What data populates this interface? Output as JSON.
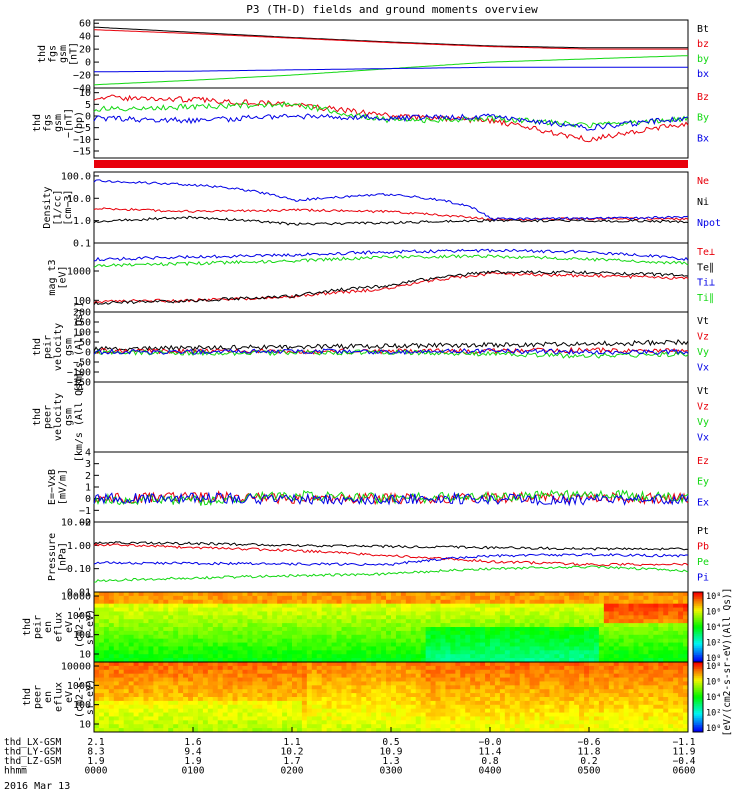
{
  "title": "P3 (TH-D) fields and ground moments overview",
  "date_label": "2016 Mar 13",
  "colors": {
    "black": "#000000",
    "red": "#e8000b",
    "green": "#12d812",
    "blue": "#0000e6"
  },
  "chart_data": [
    {
      "type": "line",
      "id": "fgs_gsm",
      "ylabel": [
        "thd",
        "fgs",
        "gsm",
        "[nT]"
      ],
      "yticks": [
        "60",
        "40",
        "20",
        "0",
        "−20",
        "−40"
      ],
      "ylim": [
        -40,
        65
      ],
      "yscale": "linear",
      "series": [
        {
          "name": "Bt",
          "color": "black",
          "x": [
            0,
            1,
            2,
            3,
            4,
            5,
            6
          ],
          "y": [
            54,
            46,
            38,
            31,
            25,
            22,
            22
          ]
        },
        {
          "name": "bz",
          "color": "red",
          "x": [
            0,
            1,
            2,
            3,
            4,
            5,
            6
          ],
          "y": [
            50,
            44,
            37,
            30,
            24,
            20,
            20
          ]
        },
        {
          "name": "by",
          "color": "green",
          "x": [
            0,
            1,
            2,
            3,
            4,
            5,
            6
          ],
          "y": [
            -35,
            -28,
            -20,
            -10,
            0,
            5,
            10
          ]
        },
        {
          "name": "bx",
          "color": "blue",
          "x": [
            0,
            1,
            2,
            3,
            4,
            5,
            6
          ],
          "y": [
            -15,
            -14,
            -12,
            -10,
            -8,
            -8,
            -8
          ]
        }
      ]
    },
    {
      "type": "line",
      "id": "fgs_gsm_hp",
      "ylabel": [
        "thd",
        "fgs",
        "gsm",
        "−[nT]",
        "(bp)"
      ],
      "yticks": [
        "10",
        "5",
        "0",
        "−5",
        "−10",
        "−15"
      ],
      "ylim": [
        -18,
        12
      ],
      "yscale": "linear",
      "series": [
        {
          "name": "Bz",
          "color": "red",
          "x": [
            0,
            1,
            2,
            3,
            4,
            5,
            6
          ],
          "y": [
            8,
            7,
            5,
            0,
            -2,
            -10,
            -3
          ]
        },
        {
          "name": "By",
          "color": "green",
          "x": [
            0,
            1,
            2,
            3,
            4,
            5,
            6
          ],
          "y": [
            3,
            4,
            5,
            -2,
            -1,
            -4,
            -1
          ]
        },
        {
          "name": "Bx",
          "color": "blue",
          "x": [
            0,
            1,
            2,
            3,
            4,
            5,
            6
          ],
          "y": [
            -1,
            -2,
            0,
            -1,
            0,
            -5,
            -1
          ]
        }
      ]
    },
    {
      "type": "line",
      "id": "density",
      "ylabel": [
        "Density",
        "[1/cc]",
        "[cm−3]"
      ],
      "yticks": [
        "100.0",
        "10.0",
        "1.0",
        "0.1"
      ],
      "ylim": [
        0.1,
        150
      ],
      "yscale": "log",
      "series": [
        {
          "name": "Ne",
          "color": "red",
          "x": [
            0,
            1,
            2,
            3,
            4,
            5,
            6
          ],
          "y": [
            3.5,
            2.5,
            3.0,
            2.5,
            1.1,
            1.2,
            1.2
          ]
        },
        {
          "name": "Ni",
          "color": "black",
          "x": [
            0,
            1,
            2,
            3,
            4,
            5,
            6
          ],
          "y": [
            0.9,
            1.4,
            0.7,
            0.8,
            1.0,
            1.0,
            0.9
          ]
        },
        {
          "name": "Npot",
          "color": "blue",
          "x": [
            0,
            1,
            2,
            3,
            4,
            5,
            6
          ],
          "y": [
            60,
            40,
            8,
            15,
            1.2,
            1.3,
            1.4
          ]
        }
      ]
    },
    {
      "type": "line",
      "id": "temperature",
      "ylabel": [
        "mag t3",
        "[eV]"
      ],
      "yticks": [
        "1000",
        "100"
      ],
      "ylim": [
        40,
        9000
      ],
      "yscale": "log",
      "series": [
        {
          "name": "Te⊥",
          "color": "red",
          "x": [
            0,
            1,
            2,
            3,
            4,
            5,
            6
          ],
          "y": [
            90,
            100,
            130,
            250,
            800,
            700,
            550
          ]
        },
        {
          "name": "Te∥",
          "color": "black",
          "x": [
            0,
            1,
            2,
            3,
            4,
            5,
            6
          ],
          "y": [
            80,
            95,
            140,
            320,
            900,
            900,
            700
          ]
        },
        {
          "name": "Ti⊥",
          "color": "blue",
          "x": [
            0,
            1,
            2,
            3,
            4,
            5,
            6
          ],
          "y": [
            2500,
            3000,
            3500,
            4500,
            5000,
            4500,
            2500
          ]
        },
        {
          "name": "Ti∥",
          "color": "green",
          "x": [
            0,
            1,
            2,
            3,
            4,
            5,
            6
          ],
          "y": [
            1500,
            1800,
            2200,
            3000,
            3200,
            2500,
            1800
          ]
        }
      ]
    },
    {
      "type": "line",
      "id": "peir_velocity",
      "ylabel": [
        "thd",
        "peir",
        "velocity",
        "gsm",
        "[km/s (All Qs)]"
      ],
      "yticks": [
        "200",
        "150",
        "100",
        "50",
        "0",
        "−50",
        "−100",
        "−150"
      ],
      "ylim": [
        -150,
        200
      ],
      "yscale": "linear",
      "series": [
        {
          "name": "Vt",
          "color": "black",
          "x": [
            0,
            1,
            2,
            3,
            4,
            5,
            6
          ],
          "y": [
            15,
            20,
            25,
            30,
            35,
            40,
            50
          ]
        },
        {
          "name": "Vz",
          "color": "red",
          "x": [
            0,
            1,
            2,
            3,
            4,
            5,
            6
          ],
          "y": [
            5,
            5,
            0,
            5,
            5,
            10,
            5
          ]
        },
        {
          "name": "Vy",
          "color": "green",
          "x": [
            0,
            1,
            2,
            3,
            4,
            5,
            6
          ],
          "y": [
            0,
            -5,
            -5,
            0,
            -10,
            -20,
            -10
          ]
        },
        {
          "name": "Vx",
          "color": "blue",
          "x": [
            0,
            1,
            2,
            3,
            4,
            5,
            6
          ],
          "y": [
            0,
            0,
            5,
            0,
            5,
            0,
            0
          ]
        }
      ]
    },
    {
      "type": "line",
      "id": "peer_velocity",
      "ylabel": [
        "thd",
        "peer",
        "velocity",
        "gsm",
        "[km/s (All Qs)]"
      ],
      "yticks": [],
      "series": [
        {
          "name": "Vt",
          "color": "black"
        },
        {
          "name": "Vz",
          "color": "red"
        },
        {
          "name": "Vy",
          "color": "green"
        },
        {
          "name": "Vx",
          "color": "blue"
        }
      ]
    },
    {
      "type": "line",
      "id": "efield",
      "ylabel": [
        "E=−VxB",
        "[mV/m]"
      ],
      "yticks": [
        "4",
        "3",
        "2",
        "1",
        "0",
        "−1",
        "−2"
      ],
      "ylim": [
        -2,
        4
      ],
      "yscale": "linear",
      "series": [
        {
          "name": "Ez",
          "color": "red",
          "x": [
            0,
            1,
            2,
            3,
            4,
            5,
            6
          ],
          "y": [
            0,
            0.2,
            0,
            0,
            0.1,
            0.1,
            0
          ]
        },
        {
          "name": "Ey",
          "color": "green",
          "x": [
            0,
            1,
            2,
            3,
            4,
            5,
            6
          ],
          "y": [
            0,
            -0.2,
            0.3,
            0,
            0.2,
            0.4,
            0
          ]
        },
        {
          "name": "Ex",
          "color": "blue",
          "x": [
            0,
            1,
            2,
            3,
            4,
            5,
            6
          ],
          "y": [
            0,
            0.1,
            -0.1,
            0,
            0,
            -0.1,
            0
          ]
        }
      ]
    },
    {
      "type": "line",
      "id": "pressure",
      "ylabel": [
        "Pressure",
        "[nPa]"
      ],
      "yticks": [
        "10.00",
        "1.00",
        "0.10",
        "0.01"
      ],
      "ylim": [
        0.01,
        10
      ],
      "yscale": "log",
      "series": [
        {
          "name": "Pt",
          "color": "black",
          "x": [
            0,
            1,
            2,
            3,
            4,
            5,
            6
          ],
          "y": [
            1.3,
            1.2,
            1.0,
            0.9,
            0.8,
            0.7,
            0.7
          ]
        },
        {
          "name": "Pb",
          "color": "red",
          "x": [
            0,
            1,
            2,
            3,
            4,
            5,
            6
          ],
          "y": [
            1.1,
            0.8,
            0.6,
            0.35,
            0.2,
            0.15,
            0.15
          ]
        },
        {
          "name": "Pe",
          "color": "green",
          "x": [
            0,
            1,
            2,
            3,
            4,
            5,
            6
          ],
          "y": [
            0.03,
            0.04,
            0.05,
            0.06,
            0.1,
            0.12,
            0.08
          ]
        },
        {
          "name": "Pi",
          "color": "blue",
          "x": [
            0,
            1,
            2,
            3,
            4,
            5,
            6
          ],
          "y": [
            0.18,
            0.17,
            0.16,
            0.15,
            0.35,
            0.4,
            0.35
          ]
        }
      ]
    },
    {
      "type": "heatmap",
      "id": "peir_eflux",
      "ylabel": [
        "thd",
        "peir",
        "en",
        "eflux",
        "eV",
        "(cm2-s-",
        "sr-eV)"
      ],
      "yticks": [
        "10000",
        "1000",
        "100",
        "10"
      ],
      "yscale": "log"
    },
    {
      "type": "heatmap",
      "id": "peer_eflux",
      "ylabel": [
        "thd",
        "peer",
        "en",
        "eflux",
        "eV",
        "(cm2-s-",
        "sr-eV)"
      ],
      "yticks": [
        "10000",
        "1000",
        "100",
        "10"
      ],
      "yscale": "log"
    }
  ],
  "colorbar": {
    "label": "[eV/(cm2-s-sr-eV)(All Qs)]",
    "peir_ticks": [
      "10⁸",
      "10⁶",
      "10⁴",
      "10²",
      "10⁰"
    ],
    "peer_ticks": [
      "10⁸",
      "10⁶",
      "10⁴",
      "10²",
      "10⁰"
    ]
  },
  "time_axis": {
    "rows": [
      {
        "label": "thd_LX-GSM",
        "values": [
          "2.1",
          "1.6",
          "1.1",
          "0.5",
          "−0.0",
          "−0.6",
          "−1.1"
        ]
      },
      {
        "label": "thd_LY-GSM",
        "values": [
          "8.3",
          "9.4",
          "10.2",
          "10.9",
          "11.4",
          "11.8",
          "11.9"
        ]
      },
      {
        "label": "thd_LZ-GSM",
        "values": [
          "1.9",
          "1.9",
          "1.7",
          "1.3",
          "0.8",
          "0.2",
          "−0.4"
        ]
      },
      {
        "label": "hhmm",
        "values": [
          "0000",
          "0100",
          "0200",
          "0300",
          "0400",
          "0500",
          "0600"
        ]
      }
    ]
  }
}
